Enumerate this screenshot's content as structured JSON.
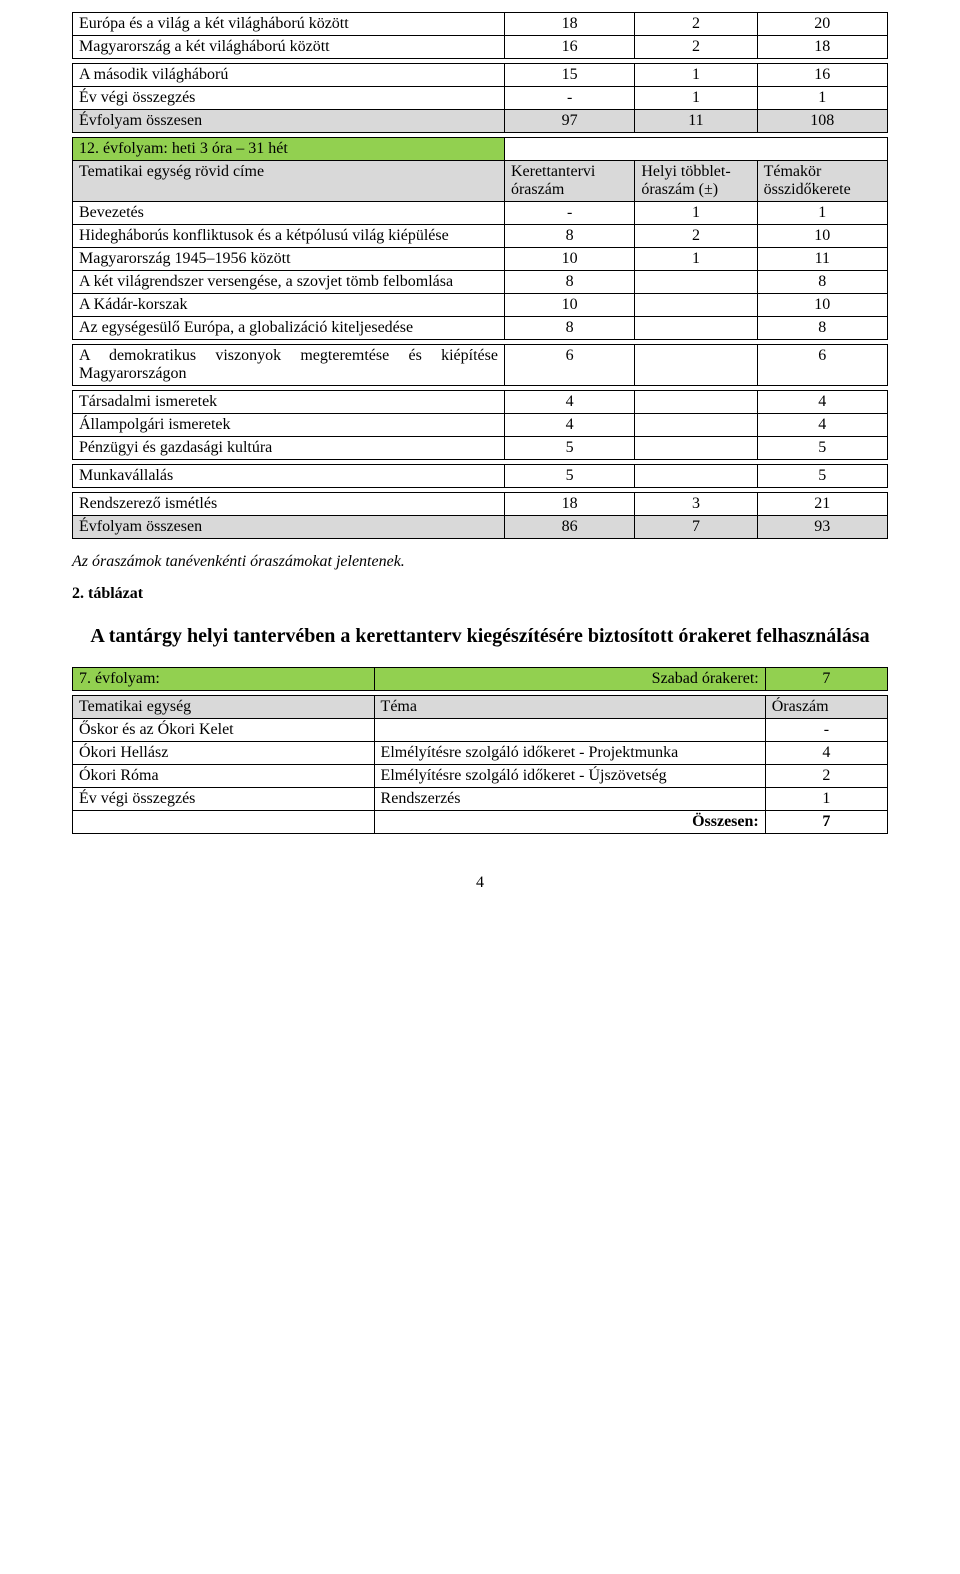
{
  "colors": {
    "grey": "#d9d9d9",
    "green": "#92d050",
    "border": "#000000",
    "background": "#ffffff",
    "text": "#000000"
  },
  "typography": {
    "base_font": "Times New Roman",
    "base_size_pt": 12,
    "title_size_pt": 15,
    "title_weight": "bold"
  },
  "table_a": {
    "rows": [
      {
        "c1": "Európa és a világ a két világháború között",
        "c2": "18",
        "c3": "2",
        "c4": "20"
      },
      {
        "c1": "Magyarország a két világháború között",
        "c2": "16",
        "c3": "2",
        "c4": "18"
      }
    ]
  },
  "table_b": {
    "rows": [
      {
        "c1": "A második világháború",
        "c2": "15",
        "c3": "1",
        "c4": "16",
        "grey": false
      },
      {
        "c1": "Év végi összegzés",
        "c2": "-",
        "c3": "1",
        "c4": "1",
        "grey": false
      },
      {
        "c1": "Évfolyam összesen",
        "c2": "97",
        "c3": "11",
        "c4": "108",
        "grey": true
      }
    ]
  },
  "table_c": {
    "green_row": {
      "c1": "12. évfolyam: heti 3 óra – 31 hét"
    },
    "header_row": {
      "c1": "Tematikai egység rövid címe",
      "c2": "Kerettantervi óraszám",
      "c3": "Helyi többlet-óraszám (±)",
      "c4": "Témakör összidőkerete"
    },
    "rows": [
      {
        "c1": "Bevezetés",
        "c2": "-",
        "c3": "1",
        "c4": "1"
      },
      {
        "c1": "Hidegháborús konfliktusok és a kétpólusú világ kiépülése",
        "c2": "8",
        "c3": "2",
        "c4": "10"
      },
      {
        "c1": "Magyarország 1945–1956 között",
        "c2": "10",
        "c3": "1",
        "c4": "11"
      },
      {
        "c1": "A két világrendszer versengése, a szovjet tömb felbomlása",
        "c2": "8",
        "c3": "",
        "c4": "8"
      },
      {
        "c1": "A Kádár-korszak",
        "c2": "10",
        "c3": "",
        "c4": "10"
      },
      {
        "c1": "Az egységesülő Európa, a globalizáció kiteljesedése",
        "c2": "8",
        "c3": "",
        "c4": "8"
      }
    ]
  },
  "table_d": {
    "rows": [
      {
        "c1": "A demokratikus viszonyok megteremtése és kiépítése Magyarországon",
        "c2": "6",
        "c3": "",
        "c4": "6"
      }
    ]
  },
  "table_e": {
    "rows": [
      {
        "c1": "Társadalmi ismeretek",
        "c2": "4",
        "c3": "",
        "c4": "4"
      },
      {
        "c1": "Állampolgári ismeretek",
        "c2": "4",
        "c3": "",
        "c4": "4"
      },
      {
        "c1": "Pénzügyi és gazdasági kultúra",
        "c2": "5",
        "c3": "",
        "c4": "5"
      }
    ]
  },
  "table_f": {
    "rows": [
      {
        "c1": "Munkavállalás",
        "c2": "5",
        "c3": "",
        "c4": "5"
      }
    ]
  },
  "table_g": {
    "rows": [
      {
        "c1": "Rendszerező ismétlés",
        "c2": "18",
        "c3": "3",
        "c4": "21",
        "grey": false
      },
      {
        "c1": "Évfolyam összesen",
        "c2": "86",
        "c3": "7",
        "c4": "93",
        "grey": true
      }
    ]
  },
  "note_italic": "Az óraszámok tanévenkénti óraszámokat jelentenek.",
  "section_number": "2. táblázat",
  "section_title": "A tantárgy helyi tantervében a kerettanterv kiegészítésére biztosított órakeret felhasználása",
  "table_h": {
    "green_row": {
      "c1": "7. évfolyam:",
      "c2": "Szabad órakeret:",
      "c3": "7"
    }
  },
  "table_i": {
    "header_row": {
      "c1": "Tematikai egység",
      "c2": "Téma",
      "c3": "Óraszám"
    },
    "rows": [
      {
        "c1": "Őskor és az Ókori Kelet",
        "c2": "",
        "c3": "-"
      },
      {
        "c1": "Ókori Hellász",
        "c2": "Elmélyítésre szolgáló időkeret - Projektmunka",
        "c3": "4"
      },
      {
        "c1": "Ókori Róma",
        "c2": "Elmélyítésre szolgáló időkeret - Újszövetség",
        "c3": "2"
      },
      {
        "c1": "Év végi összegzés",
        "c2": "Rendszerzés",
        "c3": "1"
      },
      {
        "c1": "",
        "c2": "Összesen:",
        "c3": "7",
        "bold": true
      }
    ]
  },
  "page_number": "4"
}
